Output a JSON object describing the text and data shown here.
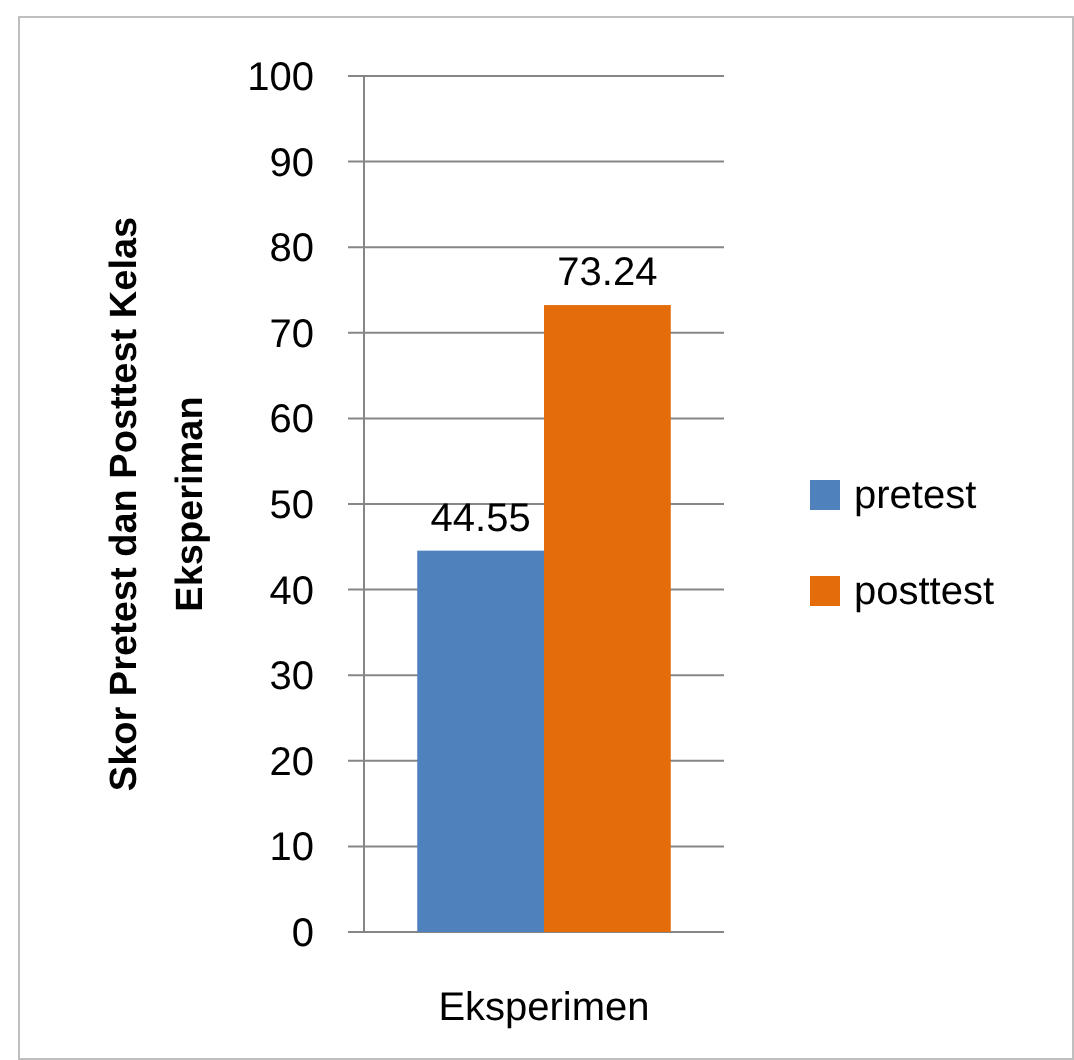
{
  "chart_data": {
    "type": "bar",
    "ylabel": "Skor Pretest dan Posttest Kelas Eksperiman",
    "categories": [
      "Eksperimen"
    ],
    "series": [
      {
        "name": "pretest",
        "color": "#4f81bd",
        "values": [
          44.55
        ]
      },
      {
        "name": "posttest",
        "color": "#e46c0a",
        "values": [
          73.24
        ]
      }
    ],
    "ylim": [
      0,
      100
    ],
    "yticks": [
      0,
      10,
      20,
      30,
      40,
      50,
      60,
      70,
      80,
      90,
      100
    ],
    "grid": "y",
    "legend": "right",
    "data_labels": true
  }
}
